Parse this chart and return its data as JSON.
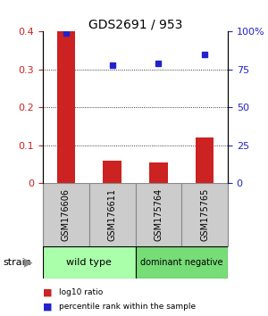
{
  "title": "GDS2691 / 953",
  "samples": [
    "GSM176606",
    "GSM176611",
    "GSM175764",
    "GSM175765"
  ],
  "log10_ratio": [
    0.4,
    0.06,
    0.055,
    0.12
  ],
  "percentile_rank": [
    99,
    78,
    79,
    85
  ],
  "bar_color": "#cc2222",
  "scatter_color": "#2222cc",
  "ylim_left": [
    0,
    0.4
  ],
  "ylim_right": [
    0,
    100
  ],
  "yticks_left": [
    0,
    0.1,
    0.2,
    0.3,
    0.4
  ],
  "yticks_right": [
    0,
    25,
    50,
    75,
    100
  ],
  "ytick_labels_left": [
    "0",
    "0.1",
    "0.2",
    "0.3",
    "0.4"
  ],
  "ytick_labels_right": [
    "0",
    "25",
    "50",
    "75",
    "100%"
  ],
  "groups": [
    {
      "label": "wild type",
      "samples": [
        0,
        1
      ],
      "color": "#aaffaa"
    },
    {
      "label": "dominant negative",
      "samples": [
        2,
        3
      ],
      "color": "#77dd77"
    }
  ],
  "strain_label": "strain",
  "legend_items": [
    {
      "color": "#cc2222",
      "label": "log10 ratio"
    },
    {
      "color": "#2222cc",
      "label": "percentile rank within the sample"
    }
  ],
  "background_color": "#ffffff",
  "sample_box_color": "#cccccc",
  "sample_box_edge": "#888888"
}
